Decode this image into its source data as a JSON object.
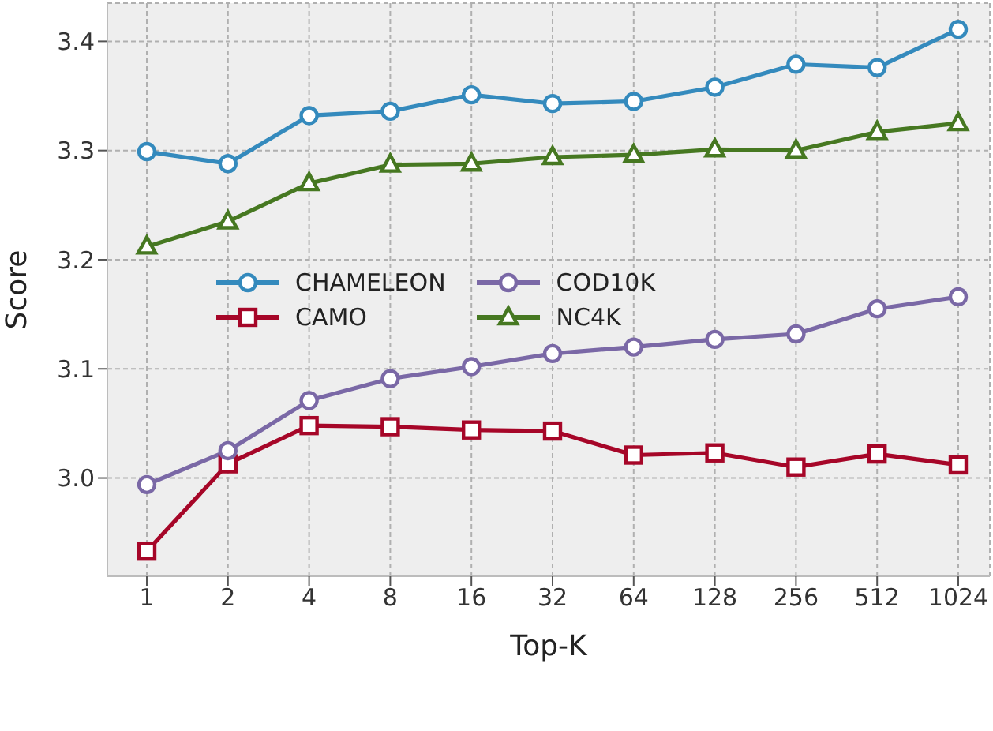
{
  "chart_data": {
    "type": "line",
    "xlabel": "Top-K",
    "ylabel": "Score",
    "categories": [
      "1",
      "2",
      "4",
      "8",
      "16",
      "32",
      "64",
      "128",
      "256",
      "512",
      "1024"
    ],
    "series": [
      {
        "name": "CHAMELEON",
        "color": "#348abd",
        "marker": "circle",
        "values": [
          3.299,
          3.288,
          3.332,
          3.336,
          3.351,
          3.343,
          3.345,
          3.358,
          3.379,
          3.376,
          3.411
        ]
      },
      {
        "name": "CAMO",
        "color": "#a60628",
        "marker": "square",
        "values": [
          2.933,
          3.013,
          3.048,
          3.047,
          3.044,
          3.043,
          3.021,
          3.023,
          3.01,
          3.022,
          3.012
        ]
      },
      {
        "name": "COD10K",
        "color": "#7a68a6",
        "marker": "circle",
        "values": [
          2.994,
          3.025,
          3.071,
          3.091,
          3.102,
          3.114,
          3.12,
          3.127,
          3.132,
          3.155,
          3.166
        ]
      },
      {
        "name": "NC4K",
        "color": "#467821",
        "marker": "triangle",
        "values": [
          3.212,
          3.235,
          3.27,
          3.287,
          3.288,
          3.294,
          3.296,
          3.301,
          3.3,
          3.317,
          3.325
        ]
      }
    ],
    "ylim": [
      2.91,
      3.435
    ],
    "yticks": [
      {
        "value": 3,
        "label": "3.0"
      },
      3.1,
      3.2,
      3.3,
      3.4
    ],
    "grid": true,
    "legend": "center left",
    "line_style": "solid"
  }
}
